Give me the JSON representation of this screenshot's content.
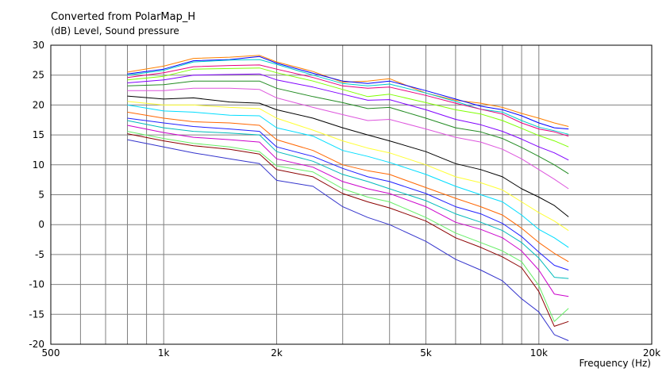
{
  "chart_data": {
    "type": "line",
    "title": "Converted from PolarMap_H",
    "ylabel": "(dB)  Level, Sound pressure",
    "xlabel": "Frequency  (Hz)",
    "x_scale": "log",
    "xlim": [
      500,
      20000
    ],
    "ylim": [
      -20,
      30
    ],
    "x_tick_labels": [
      {
        "value": 500,
        "label": "500"
      },
      {
        "value": 1000,
        "label": "1k"
      },
      {
        "value": 2000,
        "label": "2k"
      },
      {
        "value": 5000,
        "label": "5k"
      },
      {
        "value": 10000,
        "label": "10k"
      },
      {
        "value": 20000,
        "label": "20k"
      }
    ],
    "x_gridlines": [
      600,
      700,
      800,
      900,
      1000,
      2000,
      3000,
      4000,
      5000,
      6000,
      7000,
      8000,
      9000,
      10000
    ],
    "y_ticks": [
      30,
      25,
      20,
      15,
      10,
      5,
      0,
      -5,
      -10,
      -15,
      -20
    ],
    "grid": true,
    "x": [
      800,
      1000,
      1200,
      1500,
      1800,
      2000,
      2500,
      3000,
      3500,
      4000,
      5000,
      6000,
      7000,
      8000,
      9000,
      10000,
      11000,
      12000
    ],
    "series": [
      {
        "color": "#FF7F00",
        "values": [
          25.5,
          26.5,
          27.8,
          28.0,
          28.3,
          27.2,
          25.6,
          23.8,
          24.0,
          24.4,
          22.0,
          20.8,
          20.3,
          19.6,
          18.6,
          17.8,
          17.0,
          16.4
        ]
      },
      {
        "color": "#0000FF",
        "values": [
          25.2,
          26.0,
          27.4,
          27.6,
          28.1,
          27.0,
          25.3,
          24.0,
          23.6,
          24.0,
          22.4,
          21.0,
          19.8,
          19.2,
          18.2,
          17.0,
          16.2,
          16.0
        ]
      },
      {
        "color": "#00CCCC",
        "values": [
          25.0,
          25.8,
          27.2,
          27.5,
          27.6,
          26.8,
          25.0,
          23.6,
          23.2,
          23.5,
          22.0,
          20.6,
          19.3,
          18.8,
          17.4,
          16.3,
          15.7,
          15.1
        ]
      },
      {
        "color": "#E6007E",
        "values": [
          24.6,
          25.4,
          26.4,
          26.6,
          26.7,
          26.0,
          24.6,
          23.2,
          22.8,
          23.0,
          21.6,
          20.3,
          19.3,
          18.5,
          17.0,
          16.0,
          15.5,
          14.8
        ]
      },
      {
        "color": "#7FFF00",
        "values": [
          24.2,
          24.8,
          26.0,
          26.1,
          26.2,
          25.4,
          24.0,
          22.6,
          21.4,
          21.8,
          20.4,
          19.2,
          18.5,
          17.4,
          16.1,
          14.9,
          14.0,
          13.0
        ]
      },
      {
        "color": "#8000FF",
        "values": [
          23.7,
          24.2,
          25.0,
          25.1,
          25.2,
          24.2,
          23.0,
          21.8,
          20.8,
          20.9,
          19.2,
          17.6,
          16.7,
          15.6,
          14.3,
          13.0,
          12.0,
          10.8
        ]
      },
      {
        "color": "#228B22",
        "values": [
          23.2,
          23.4,
          24.0,
          24.0,
          24.0,
          22.8,
          21.4,
          20.4,
          19.4,
          19.6,
          17.8,
          16.2,
          15.5,
          14.4,
          12.9,
          11.4,
          10.0,
          8.5
        ]
      },
      {
        "color": "#DD55DD",
        "values": [
          22.4,
          22.4,
          22.8,
          22.8,
          22.6,
          21.2,
          19.6,
          18.4,
          17.4,
          17.6,
          16.0,
          14.6,
          13.8,
          12.6,
          11.0,
          9.2,
          7.6,
          6.0
        ]
      },
      {
        "color": "#000000",
        "values": [
          21.5,
          21.0,
          21.2,
          20.5,
          20.3,
          19.2,
          17.8,
          16.2,
          15.0,
          14.0,
          12.2,
          10.2,
          9.2,
          8.0,
          6.0,
          4.6,
          3.2,
          1.3
        ]
      },
      {
        "color": "#FFFF33",
        "values": [
          20.6,
          20.0,
          20.0,
          19.6,
          19.4,
          17.8,
          15.8,
          14.0,
          12.8,
          12.0,
          10.0,
          8.0,
          7.0,
          5.8,
          3.8,
          2.0,
          0.6,
          -1.0
        ]
      },
      {
        "color": "#00DDFF",
        "values": [
          20.0,
          19.0,
          18.8,
          18.3,
          18.2,
          16.2,
          14.8,
          12.4,
          11.4,
          10.4,
          8.4,
          6.4,
          5.0,
          3.8,
          1.6,
          -0.8,
          -2.2,
          -3.8
        ]
      },
      {
        "color": "#FF6600",
        "values": [
          18.8,
          17.8,
          17.2,
          17.0,
          16.6,
          14.2,
          12.4,
          10.0,
          9.0,
          8.4,
          6.2,
          4.4,
          3.0,
          1.6,
          -0.6,
          -3.0,
          -4.8,
          -6.2
        ]
      },
      {
        "color": "#2020FF",
        "values": [
          17.8,
          17.0,
          16.4,
          16.0,
          15.6,
          13.0,
          11.4,
          9.4,
          8.0,
          7.2,
          5.2,
          3.0,
          1.8,
          0.2,
          -2.0,
          -4.6,
          -6.8,
          -7.6
        ]
      },
      {
        "color": "#00BBBB",
        "values": [
          17.4,
          16.2,
          15.6,
          15.3,
          15.0,
          12.2,
          10.6,
          8.4,
          7.2,
          6.0,
          4.0,
          1.8,
          0.4,
          -1.0,
          -3.0,
          -5.6,
          -8.8,
          -9.0
        ]
      },
      {
        "color": "#CC00CC",
        "values": [
          16.6,
          15.4,
          14.6,
          14.2,
          13.8,
          11.0,
          9.6,
          7.2,
          6.0,
          5.2,
          3.0,
          0.4,
          -0.8,
          -2.2,
          -4.4,
          -7.6,
          -11.6,
          -12.0
        ]
      },
      {
        "color": "#66EE66",
        "values": [
          15.6,
          14.4,
          13.6,
          13.0,
          12.2,
          9.8,
          8.8,
          6.0,
          4.6,
          3.8,
          1.2,
          -1.4,
          -3.0,
          -4.4,
          -6.2,
          -10.2,
          -16.2,
          -14.0
        ]
      },
      {
        "color": "#8B0000",
        "values": [
          15.2,
          14.0,
          13.2,
          12.6,
          11.8,
          9.2,
          8.0,
          5.2,
          3.8,
          2.8,
          0.6,
          -2.2,
          -3.8,
          -5.4,
          -7.2,
          -11.2,
          -17.0,
          -16.2
        ]
      },
      {
        "color": "#3333CC",
        "values": [
          14.2,
          13.0,
          12.0,
          11.0,
          10.2,
          7.4,
          6.4,
          3.0,
          1.2,
          0.0,
          -2.8,
          -5.8,
          -7.6,
          -9.4,
          -12.4,
          -14.6,
          -18.4,
          -19.4
        ]
      }
    ]
  }
}
